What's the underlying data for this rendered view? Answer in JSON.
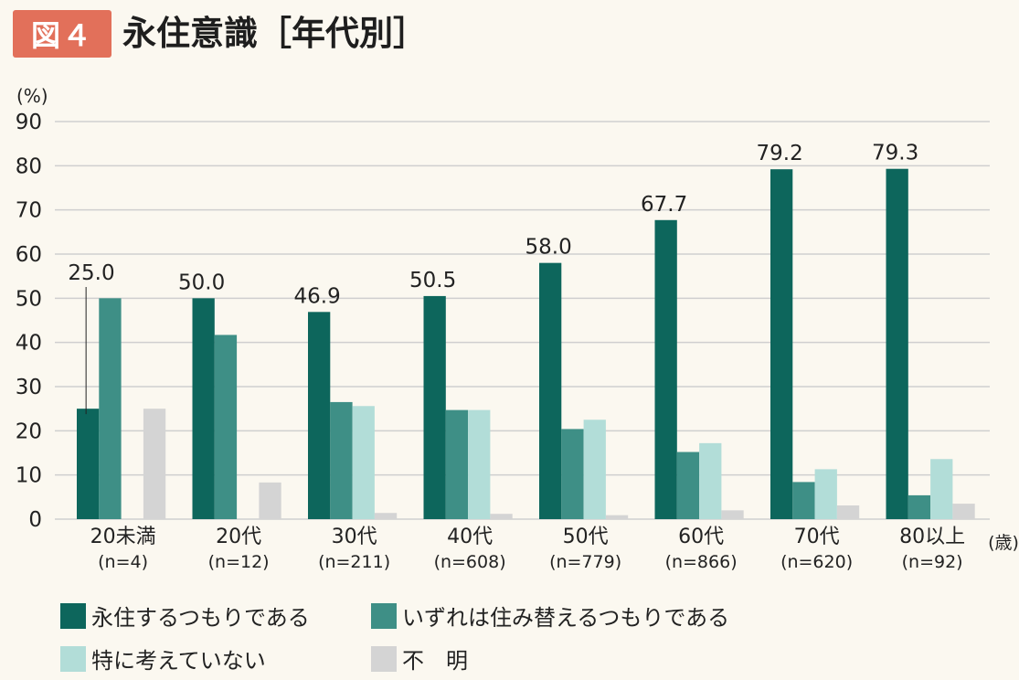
{
  "header": {
    "badge": "図４",
    "title": "永住意識［年代別］"
  },
  "colors": {
    "permanent": "#0d665c",
    "move": "#3e8f86",
    "undecided": "#b2ddd8",
    "unknown": "#d4d4d4",
    "badge": "#e2705a",
    "background": "#fbf8f0"
  },
  "chart_data": {
    "type": "bar",
    "title": "永住意識［年代別］",
    "ylabel": "(%)",
    "xunit": "(歳)",
    "ylim": [
      0,
      90
    ],
    "yticks": [
      0,
      10,
      20,
      30,
      40,
      50,
      60,
      70,
      80,
      90
    ],
    "grid": true,
    "categories": [
      "20未満",
      "20代",
      "30代",
      "40代",
      "50代",
      "60代",
      "70代",
      "80以上"
    ],
    "sample_sizes": [
      "(n=4)",
      "(n=12)",
      "(n=211)",
      "(n=608)",
      "(n=779)",
      "(n=866)",
      "(n=620)",
      "(n=92)"
    ],
    "series": [
      {
        "name": "永住するつもりである",
        "color": "#0d665c",
        "values": [
          25.0,
          50.0,
          46.9,
          50.5,
          58.0,
          67.7,
          79.2,
          79.3
        ]
      },
      {
        "name": "いずれは住み替えるつもりである",
        "color": "#3e8f86",
        "values": [
          50.0,
          41.7,
          26.5,
          24.7,
          20.4,
          15.2,
          8.4,
          5.4
        ]
      },
      {
        "name": "特に考えていない",
        "color": "#b2ddd8",
        "values": [
          0.0,
          0.0,
          25.6,
          24.7,
          22.5,
          17.2,
          11.3,
          13.6
        ]
      },
      {
        "name": "不　明",
        "color": "#d4d4d4",
        "values": [
          25.0,
          8.3,
          1.4,
          1.2,
          0.9,
          2.0,
          3.1,
          3.5
        ]
      }
    ],
    "data_labels": [
      "25.0",
      "50.0",
      "46.9",
      "50.5",
      "58.0",
      "67.7",
      "79.2",
      "79.3"
    ]
  }
}
